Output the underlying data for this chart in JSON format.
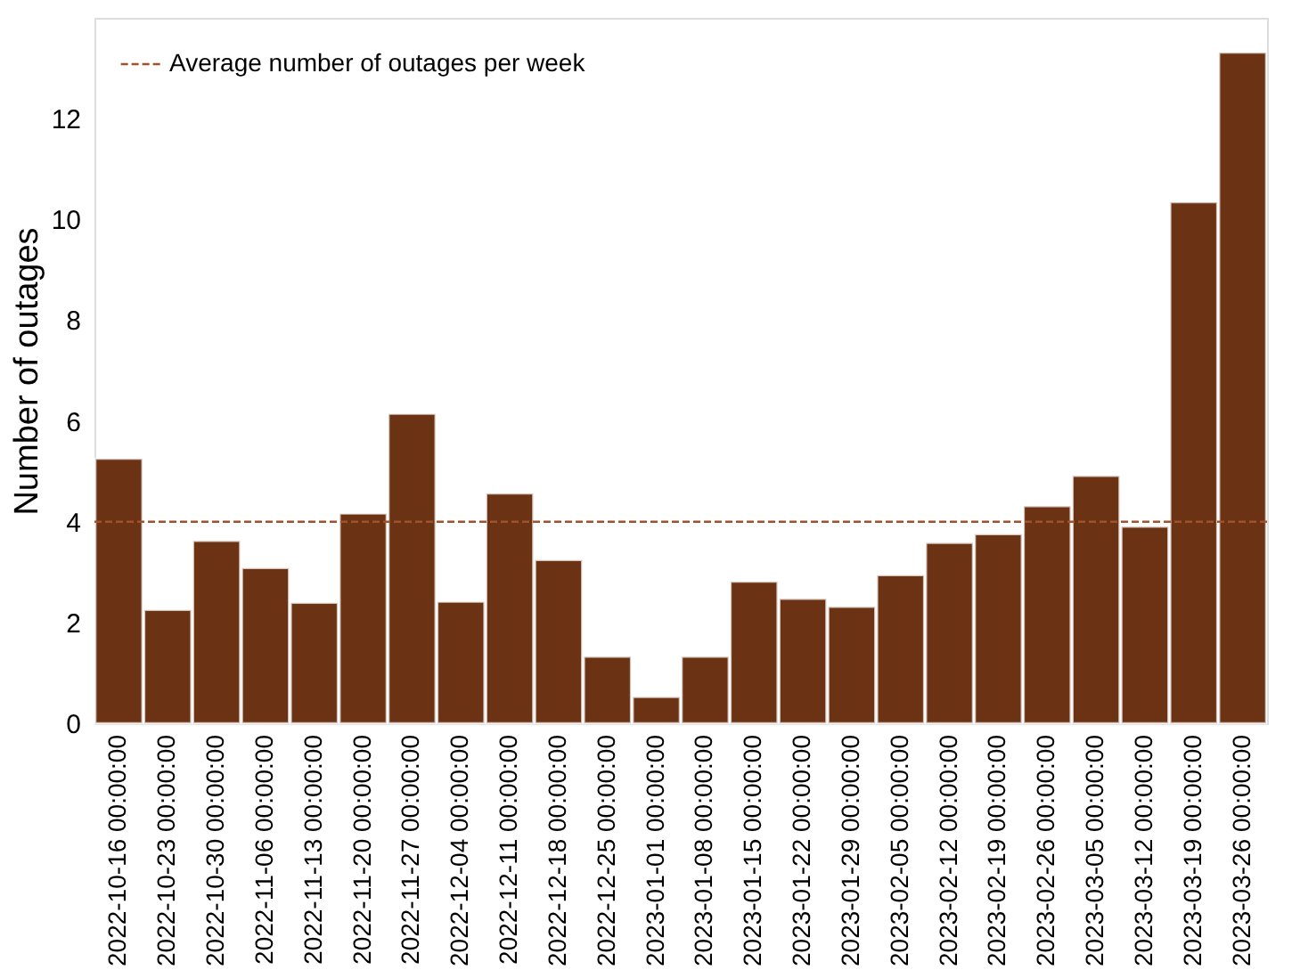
{
  "chart_data": {
    "type": "bar",
    "ylabel": "Number of outages",
    "categories": [
      "2022-10-16 00:00:00",
      "2022-10-23 00:00:00",
      "2022-10-30 00:00:00",
      "2022-11-06 00:00:00",
      "2022-11-13 00:00:00",
      "2022-11-20 00:00:00",
      "2022-11-27 00:00:00",
      "2022-12-04 00:00:00",
      "2022-12-11 00:00:00",
      "2022-12-18 00:00:00",
      "2022-12-25 00:00:00",
      "2023-01-01 00:00:00",
      "2023-01-08 00:00:00",
      "2023-01-15 00:00:00",
      "2023-01-22 00:00:00",
      "2023-01-29 00:00:00",
      "2023-02-05 00:00:00",
      "2023-02-12 00:00:00",
      "2023-02-19 00:00:00",
      "2023-02-26 00:00:00",
      "2023-03-05 00:00:00",
      "2023-03-12 00:00:00",
      "2023-03-19 00:00:00",
      "2023-03-26 00:00:00"
    ],
    "values": [
      5.25,
      2.25,
      3.62,
      3.08,
      2.39,
      4.16,
      6.14,
      2.41,
      4.56,
      3.24,
      1.32,
      0.52,
      1.32,
      2.81,
      2.47,
      2.31,
      2.94,
      3.58,
      3.75,
      4.31,
      4.91,
      3.9,
      10.34,
      13.31
    ],
    "color": "#6b3213",
    "ylim": [
      0,
      14
    ],
    "yticks": [
      0,
      2,
      4,
      6,
      8,
      10,
      12
    ],
    "ref_lines": [
      {
        "axis": "y",
        "value": 4.0,
        "label": "Average number of outages per week",
        "color": "#a0522d",
        "line_style": "dashed"
      }
    ],
    "legend": "top left",
    "grid": false
  }
}
